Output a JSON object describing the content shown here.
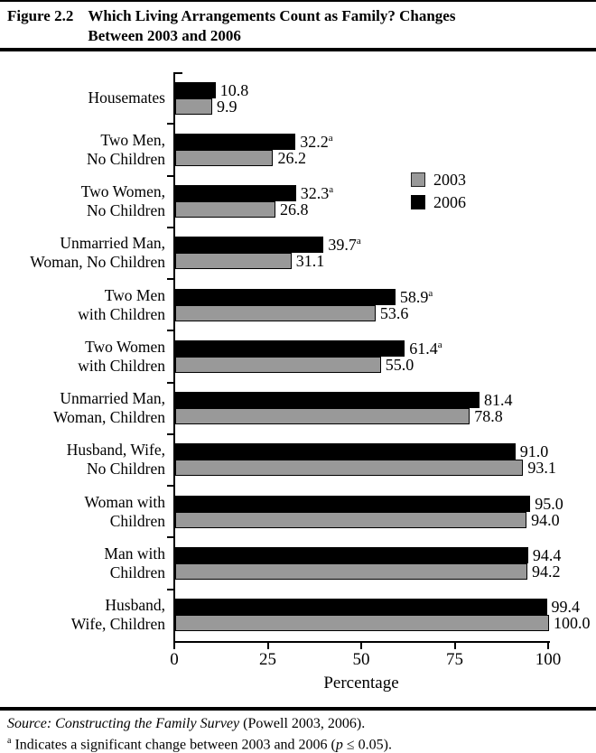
{
  "figure": {
    "label": "Figure 2.2",
    "title_line1": "Which Living Arrangements Count as Family? Changes",
    "title_line2": "Between 2003 and 2006"
  },
  "chart_data": {
    "type": "bar",
    "orientation": "horizontal",
    "title": "Which Living Arrangements Count as Family? Changes Between 2003 and 2006",
    "xlabel": "Percentage",
    "xlim": [
      0,
      100
    ],
    "xticks": [
      0,
      25,
      50,
      75,
      100
    ],
    "grid": false,
    "legend_position": "upper-right-inside",
    "sig_marker": "a",
    "categories": [
      [
        "Housemates"
      ],
      [
        "Two Men,",
        "No Children"
      ],
      [
        "Two Women,",
        "No Children"
      ],
      [
        "Unmarried Man,",
        "Woman, No Children"
      ],
      [
        "Two Men",
        "with Children"
      ],
      [
        "Two Women",
        "with Children"
      ],
      [
        "Unmarried Man,",
        "Woman, Children"
      ],
      [
        "Husband, Wife,",
        "No Children"
      ],
      [
        "Woman with",
        "Children"
      ],
      [
        "Man with",
        "Children"
      ],
      [
        "Husband,",
        "Wife, Children"
      ]
    ],
    "bar_order_top_to_bottom": [
      "2006",
      "2003"
    ],
    "series": [
      {
        "name": "2003",
        "color": "#999999",
        "values": [
          9.9,
          26.2,
          26.8,
          31.1,
          53.6,
          55.0,
          78.8,
          93.1,
          94.0,
          94.2,
          100.0
        ],
        "labels": [
          "9.9",
          "26.2",
          "26.8",
          "31.1",
          "53.6",
          "55.0",
          "78.8",
          "93.1",
          "94.0",
          "94.2",
          "100.0"
        ],
        "significant": [
          false,
          false,
          false,
          false,
          false,
          false,
          false,
          false,
          false,
          false,
          false
        ]
      },
      {
        "name": "2006",
        "color": "#000000",
        "values": [
          10.8,
          32.2,
          32.3,
          39.7,
          58.9,
          61.4,
          81.4,
          91.0,
          95.0,
          94.4,
          99.4
        ],
        "labels": [
          "10.8",
          "32.2",
          "32.3",
          "39.7",
          "58.9",
          "61.4",
          "81.4",
          "91.0",
          "95.0",
          "94.4",
          "99.4"
        ],
        "significant": [
          false,
          true,
          true,
          true,
          true,
          true,
          false,
          false,
          false,
          false,
          false
        ]
      }
    ],
    "legend": [
      {
        "label": "2003",
        "color": "#999999"
      },
      {
        "label": "2006",
        "color": "#000000"
      }
    ]
  },
  "footer": {
    "source_italic": "Source: Constructing the Family Survey",
    "source_roman": " (Powell 2003, 2006).",
    "note_marker": "a",
    "note_before_p": " Indicates a significant change between 2003 and 2006 (",
    "note_p": "p",
    "note_after_p": " ≤ 0.05)."
  }
}
